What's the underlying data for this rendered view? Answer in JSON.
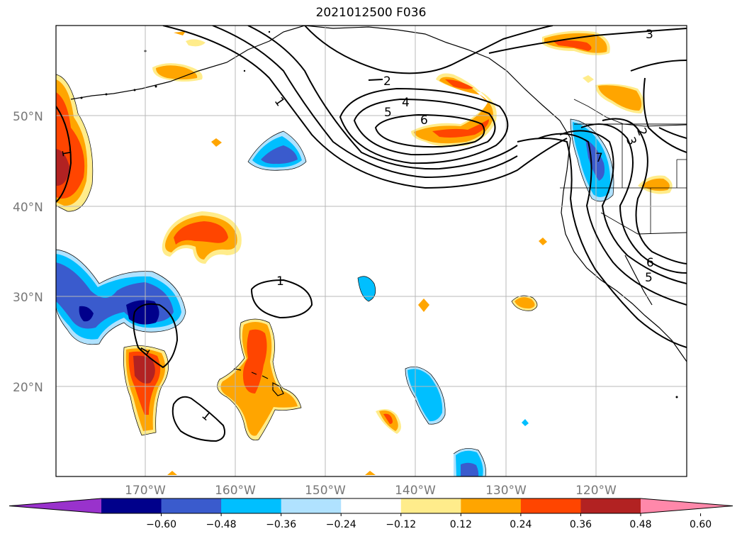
{
  "title": "2021012500 F036",
  "latitude_labels": [
    "50°N",
    "40°N",
    "30°N",
    "20°N"
  ],
  "longitude_labels": [
    "170°W",
    "160°W",
    "150°W",
    "140°W",
    "130°W",
    "120°W"
  ],
  "colorbar": {
    "ticks": [
      "−0.60",
      "−0.48",
      "−0.36",
      "−0.24",
      "−0.12",
      "0.12",
      "0.24",
      "0.36",
      "0.48",
      "0.60"
    ],
    "colors": [
      "#9932cc",
      "#00008b",
      "#3a5bcd",
      "#00bfff",
      "#b0e2ff",
      "#ffffff",
      "#ffec8b",
      "#ffa500",
      "#ff4500",
      "#b22222",
      "#ff88aa"
    ]
  },
  "contour_labels": [
    "1",
    "1",
    "1",
    "1",
    "1",
    "2",
    "4",
    "5",
    "6",
    "3",
    "7",
    "3",
    "6",
    "5",
    "2"
  ]
}
